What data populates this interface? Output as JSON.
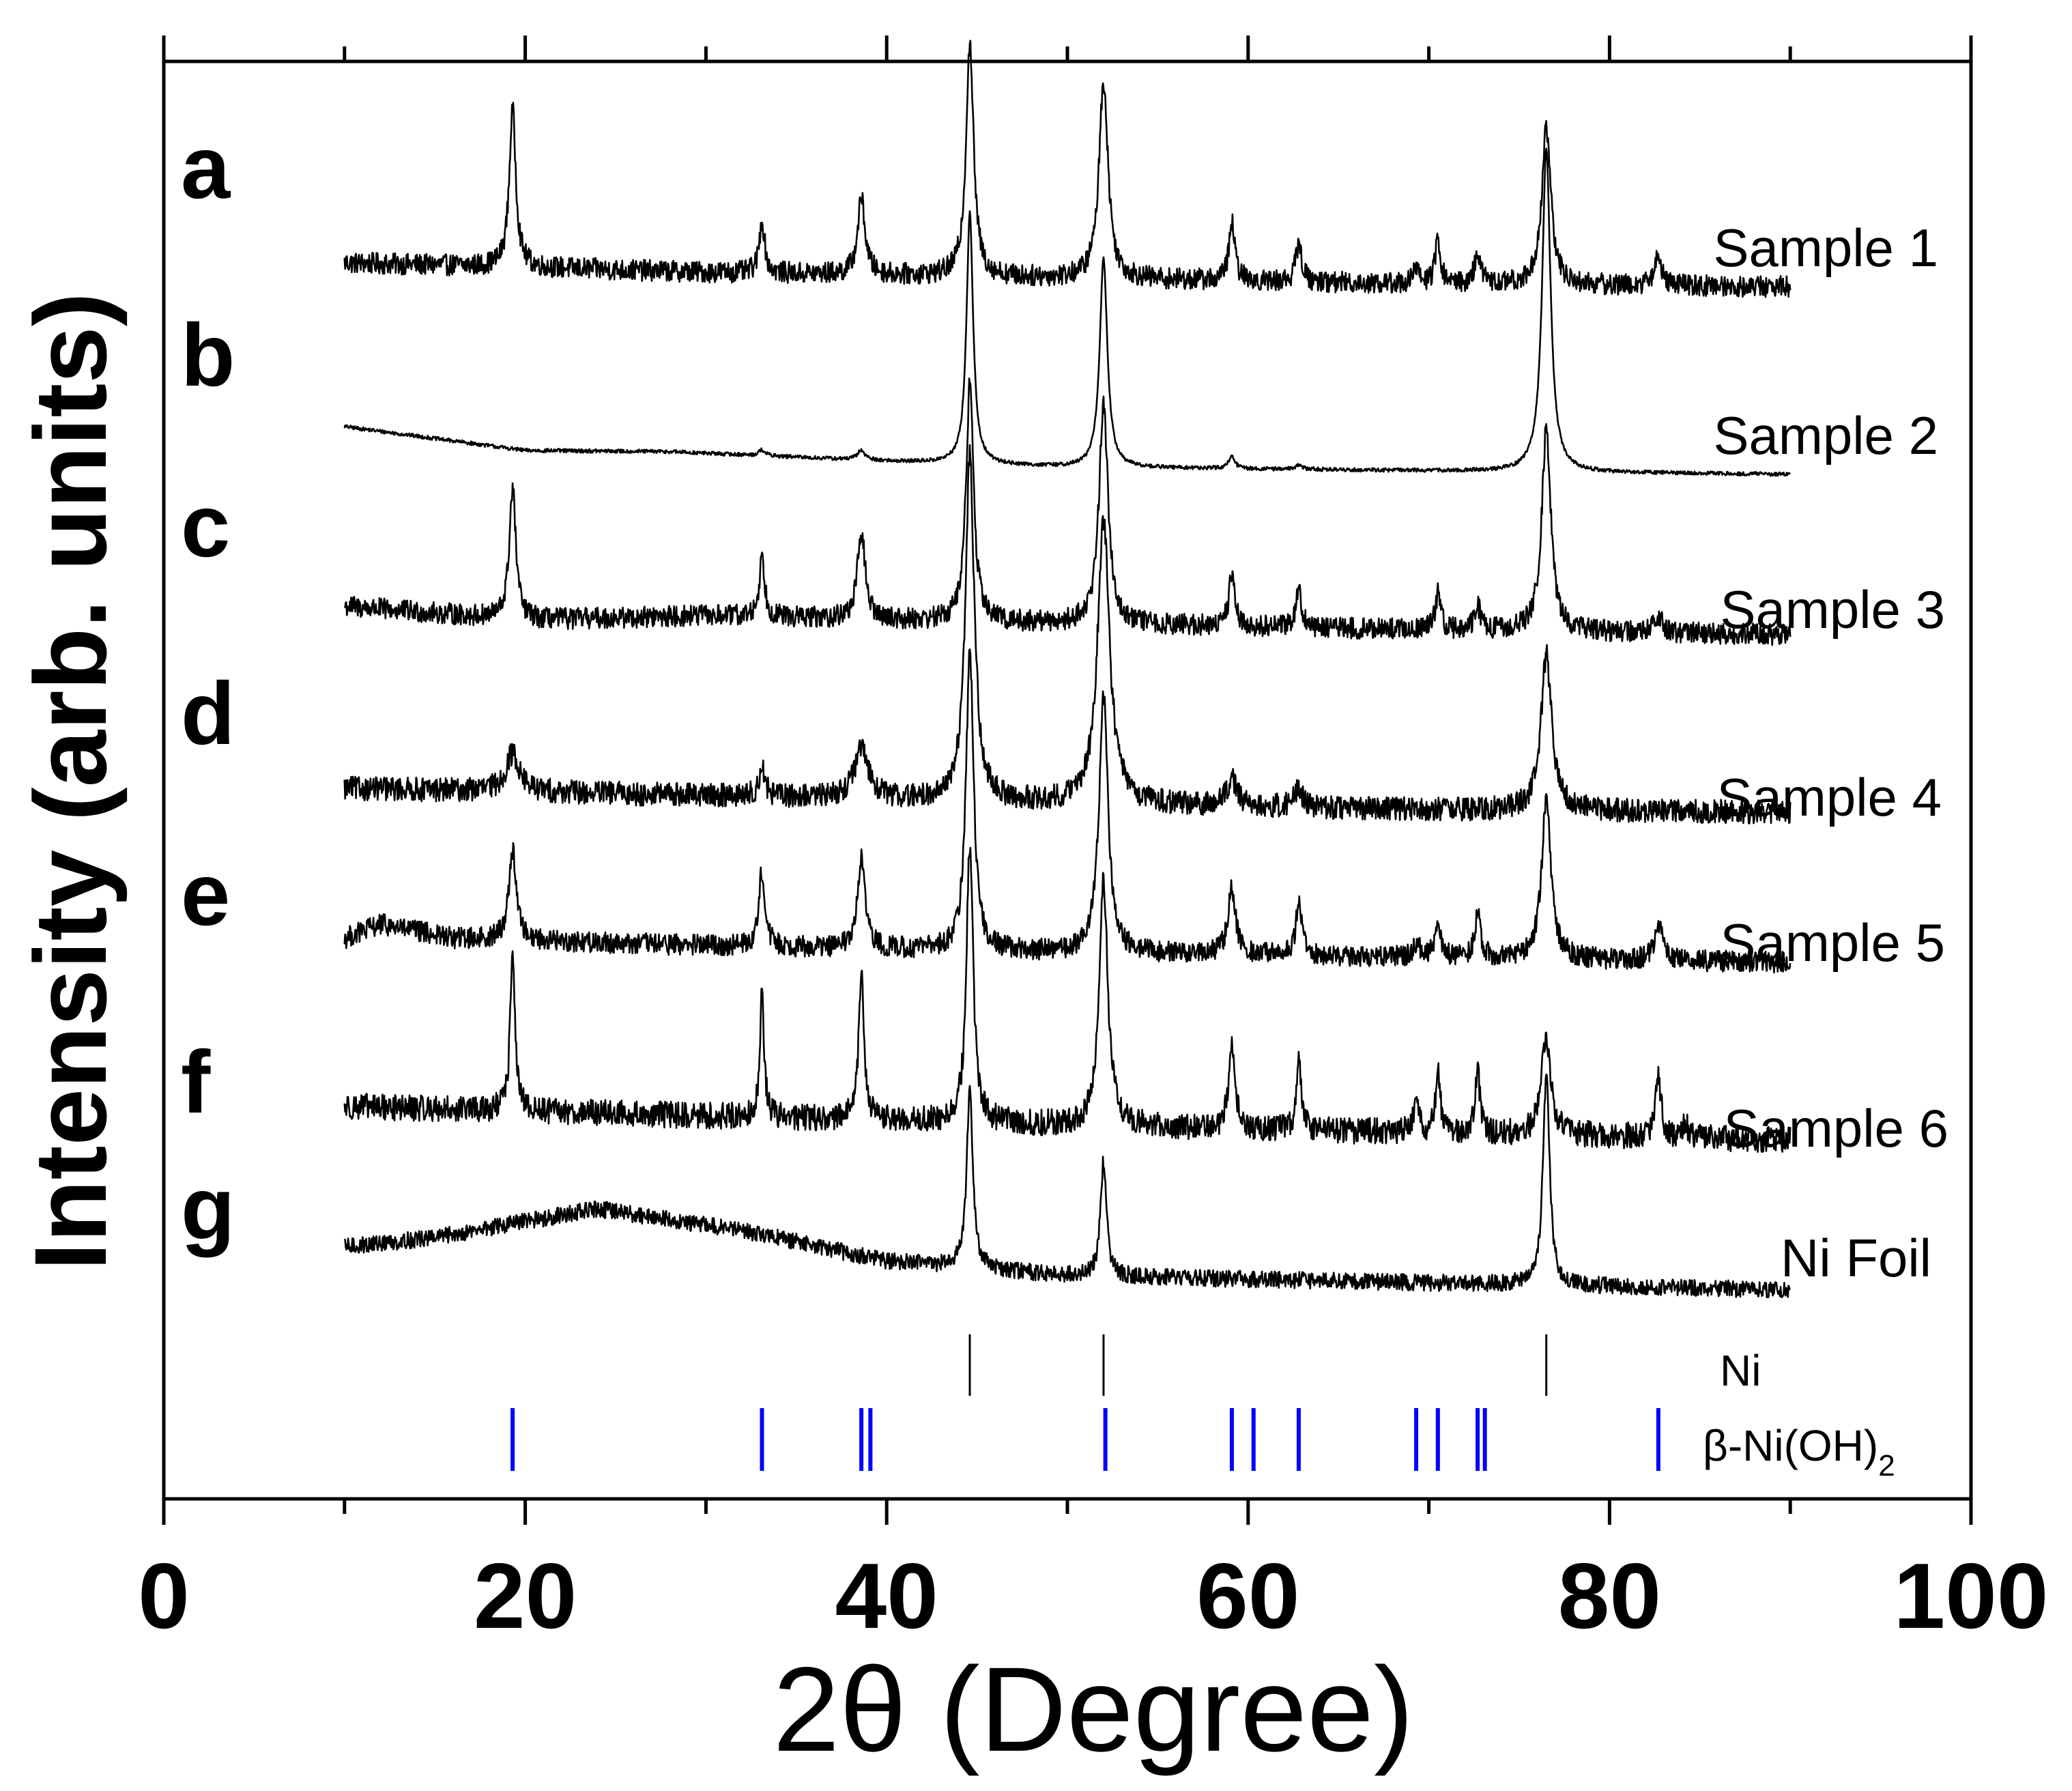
{
  "chart_data": {
    "type": "line",
    "title": "",
    "xlabel": "2θ (Degree)",
    "ylabel": "Intensity (arb. units)",
    "xlim": [
      0,
      100
    ],
    "x_range_measured": [
      10,
      90
    ],
    "x_ticks": [
      0,
      20,
      40,
      60,
      80,
      100
    ],
    "x_tick_labels": [
      "0",
      "20",
      "40",
      "60",
      "80",
      "100"
    ],
    "grid": false,
    "series": [
      {
        "letter": "a",
        "name": "Sample 1",
        "noise": 0.45,
        "background": [
          [
            10,
            1.0
          ],
          [
            30,
            0.6
          ],
          [
            50,
            0.35
          ],
          [
            70,
            0.1
          ],
          [
            90,
            0.0
          ]
        ],
        "peaks": [
          [
            19.3,
            6.6,
            0.22
          ],
          [
            33.1,
            2.2,
            0.18
          ],
          [
            38.6,
            3.2,
            0.25
          ],
          [
            44.6,
            9.8,
            0.25
          ],
          [
            52.0,
            8.3,
            0.3
          ],
          [
            59.1,
            2.4,
            0.2
          ],
          [
            62.8,
            1.6,
            0.2
          ],
          [
            69.3,
            0.6,
            0.2
          ],
          [
            70.5,
            1.8,
            0.18
          ],
          [
            72.7,
            1.3,
            0.2
          ],
          [
            76.5,
            6.6,
            0.3
          ],
          [
            82.7,
            1.2,
            0.25
          ]
        ]
      },
      {
        "letter": "b",
        "name": "Sample 2",
        "noise": 0.08,
        "background": [
          [
            10,
            2.0
          ],
          [
            20,
            1.0
          ],
          [
            28,
            0.95
          ],
          [
            40,
            0.55
          ],
          [
            50,
            0.3
          ],
          [
            70,
            0.15
          ],
          [
            90,
            0.0
          ]
        ],
        "peaks": [
          [
            33.1,
            0.25,
            0.2
          ],
          [
            38.6,
            0.4,
            0.25
          ],
          [
            44.6,
            10.5,
            0.22
          ],
          [
            52.0,
            8.8,
            0.25
          ],
          [
            59.1,
            0.5,
            0.2
          ],
          [
            62.8,
            0.2,
            0.2
          ],
          [
            76.5,
            13.5,
            0.28
          ]
        ]
      },
      {
        "letter": "c",
        "name": "Sample 3",
        "noise": 0.45,
        "background": [
          [
            10,
            1.2
          ],
          [
            20,
            0.6
          ],
          [
            30,
            0.8
          ],
          [
            50,
            0.45
          ],
          [
            70,
            0.2
          ],
          [
            90,
            0.0
          ]
        ],
        "peaks": [
          [
            19.3,
            5.5,
            0.22
          ],
          [
            33.1,
            2.5,
            0.18
          ],
          [
            38.6,
            3.7,
            0.25
          ],
          [
            44.6,
            10.0,
            0.25
          ],
          [
            52.0,
            9.3,
            0.3
          ],
          [
            59.1,
            2.2,
            0.2
          ],
          [
            62.8,
            1.6,
            0.2
          ],
          [
            70.5,
            1.5,
            0.18
          ],
          [
            72.7,
            1.0,
            0.2
          ],
          [
            76.5,
            8.5,
            0.3
          ],
          [
            82.7,
            0.7,
            0.25
          ]
        ]
      },
      {
        "letter": "d",
        "name": "Sample 4",
        "noise": 0.5,
        "background": [
          [
            10,
            1.0
          ],
          [
            30,
            0.7
          ],
          [
            50,
            0.35
          ],
          [
            70,
            0.1
          ],
          [
            90,
            0.0
          ]
        ],
        "peaks": [
          [
            19.3,
            1.6,
            0.45
          ],
          [
            33.1,
            1.2,
            0.2
          ],
          [
            38.6,
            2.0,
            0.5
          ],
          [
            44.6,
            14.4,
            0.3
          ],
          [
            52.0,
            11.9,
            0.4
          ],
          [
            59.1,
            1.2,
            0.3
          ],
          [
            62.8,
            0.7,
            0.3
          ],
          [
            76.5,
            6.5,
            0.35
          ]
        ]
      },
      {
        "letter": "e",
        "name": "Sample 5",
        "noise": 0.45,
        "background": [
          [
            10,
            1.0
          ],
          [
            12,
            1.6
          ],
          [
            16,
            1.0
          ],
          [
            30,
            0.7
          ],
          [
            50,
            0.4
          ],
          [
            70,
            0.2
          ],
          [
            90,
            0.0
          ]
        ],
        "peaks": [
          [
            19.3,
            3.8,
            0.25
          ],
          [
            33.1,
            3.2,
            0.2
          ],
          [
            38.6,
            3.7,
            0.25
          ],
          [
            44.6,
            12.6,
            0.25
          ],
          [
            52.0,
            10.8,
            0.3
          ],
          [
            59.1,
            2.8,
            0.25
          ],
          [
            62.8,
            2.2,
            0.2
          ],
          [
            69.3,
            0.6,
            0.2
          ],
          [
            70.5,
            1.5,
            0.18
          ],
          [
            72.7,
            1.8,
            0.2
          ],
          [
            76.5,
            6.8,
            0.3
          ],
          [
            82.7,
            1.6,
            0.25
          ]
        ]
      },
      {
        "letter": "f",
        "name": "Sample 6",
        "noise": 0.55,
        "background": [
          [
            10,
            1.4
          ],
          [
            30,
            1.0
          ],
          [
            50,
            0.6
          ],
          [
            70,
            0.3
          ],
          [
            90,
            0.0
          ]
        ],
        "peaks": [
          [
            19.3,
            7.0,
            0.15
          ],
          [
            33.1,
            5.2,
            0.14
          ],
          [
            38.6,
            6.3,
            0.17
          ],
          [
            44.6,
            11.8,
            0.22
          ],
          [
            52.0,
            10.3,
            0.28
          ],
          [
            59.1,
            3.6,
            0.2
          ],
          [
            62.8,
            3.0,
            0.15
          ],
          [
            69.3,
            1.5,
            0.15
          ],
          [
            70.5,
            2.6,
            0.15
          ],
          [
            72.7,
            2.7,
            0.15
          ],
          [
            76.5,
            4.2,
            0.3
          ],
          [
            82.7,
            2.6,
            0.18
          ],
          [
            84.2,
            0.6,
            0.15
          ]
        ]
      },
      {
        "letter": "g",
        "name": "Ni Foil",
        "noise": 0.35,
        "background": [
          [
            10,
            1.8
          ],
          [
            15,
            2.2
          ],
          [
            24,
            3.4
          ],
          [
            32,
            2.5
          ],
          [
            40,
            1.2
          ],
          [
            50,
            0.6
          ],
          [
            70,
            0.3
          ],
          [
            90,
            0.0
          ]
        ],
        "peaks": [
          [
            44.6,
            7.6,
            0.2
          ],
          [
            52.0,
            4.8,
            0.2
          ],
          [
            76.5,
            8.8,
            0.22
          ]
        ]
      }
    ],
    "reference_patterns": [
      {
        "name": "Ni",
        "color": "#000000",
        "positions": [
          44.6,
          52.0,
          76.5
        ]
      },
      {
        "name": "β-Ni(OH)",
        "subscript": "2",
        "color": "#0000ff",
        "positions": [
          19.3,
          33.1,
          38.6,
          39.1,
          52.1,
          59.1,
          60.3,
          62.8,
          69.3,
          70.5,
          72.7,
          73.1,
          82.7
        ]
      }
    ]
  }
}
